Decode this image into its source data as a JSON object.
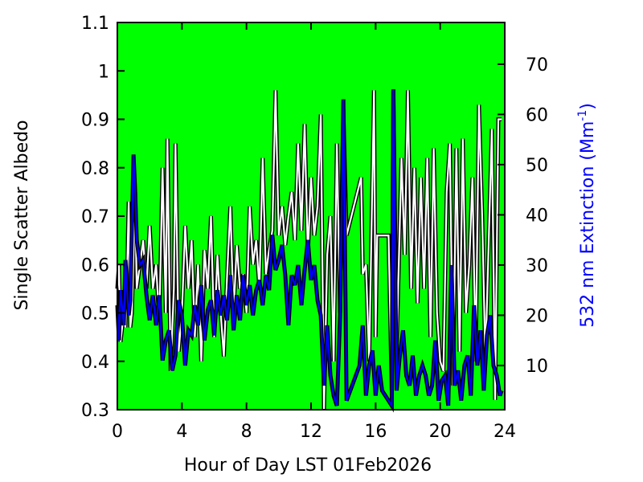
{
  "chart_data": {
    "type": "line",
    "title": "",
    "xlabel": "Hour of Day LST 01Feb2026",
    "ylabel": "Single Scatter Albedo",
    "y2label_main": "532 nm Extinction (Mm",
    "y2label_sup": "-1",
    "y2label_end": ")",
    "xlim": [
      0,
      24
    ],
    "ylim": [
      0.3,
      1.1
    ],
    "y2lim": [
      1.2,
      78.3
    ],
    "grid": false,
    "background_color": "#00ff00",
    "xticks": [
      "0",
      "4",
      "8",
      "12",
      "16",
      "20",
      "24"
    ],
    "xtick_values": [
      0,
      4,
      8,
      12,
      16,
      20,
      24
    ],
    "yticks": [
      "0.3",
      "0.4",
      "0.5",
      "0.6",
      "0.7",
      "0.8",
      "0.9",
      "1",
      "1.1"
    ],
    "ytick_values": [
      0.3,
      0.4,
      0.5,
      0.6,
      0.7,
      0.8,
      0.9,
      1.0,
      1.1
    ],
    "y2ticks": [
      "10",
      "20",
      "30",
      "40",
      "50",
      "60",
      "70"
    ],
    "y2tick_values": [
      10,
      20,
      30,
      40,
      50,
      60,
      70
    ],
    "series": [
      {
        "name": "Single Scatter Albedo",
        "axis": "left",
        "color": "#ffffff",
        "x": [
          0.0,
          0.1,
          0.2,
          0.4,
          0.5,
          0.6,
          0.7,
          0.8,
          0.9,
          1.1,
          1.2,
          1.4,
          1.6,
          1.8,
          2.0,
          2.2,
          2.4,
          2.6,
          2.8,
          3.0,
          3.1,
          3.3,
          3.5,
          3.6,
          3.8,
          4.0,
          4.2,
          4.4,
          4.6,
          4.8,
          5.0,
          5.2,
          5.4,
          5.6,
          5.8,
          6.0,
          6.2,
          6.4,
          6.6,
          6.8,
          7.0,
          7.2,
          7.4,
          7.6,
          7.8,
          8.0,
          8.2,
          8.4,
          8.6,
          8.8,
          9.0,
          9.2,
          9.4,
          9.6,
          9.8,
          10.0,
          10.2,
          10.4,
          10.6,
          10.8,
          11.0,
          11.2,
          11.4,
          11.6,
          11.8,
          12.0,
          12.2,
          12.4,
          12.6,
          12.8,
          13.0,
          13.2,
          13.4,
          13.6,
          13.8,
          14.0,
          14.2,
          15.1,
          15.2,
          15.4,
          15.6,
          15.9,
          16.0,
          16.1,
          16.8,
          17.0,
          17.1,
          17.3,
          17.6,
          17.8,
          18.0,
          18.2,
          18.4,
          18.6,
          18.8,
          19.0,
          19.2,
          19.4,
          19.6,
          19.8,
          20.0,
          20.2,
          20.4,
          20.6,
          20.8,
          21.0,
          21.2,
          21.4,
          21.6,
          21.8,
          22.0,
          22.2,
          22.4,
          22.6,
          22.8,
          23.2,
          23.4,
          23.6,
          23.8
        ],
        "values": [
          0.55,
          0.6,
          0.44,
          0.5,
          0.47,
          0.58,
          0.73,
          0.47,
          0.5,
          0.75,
          0.55,
          0.6,
          0.65,
          0.55,
          0.68,
          0.55,
          0.6,
          0.48,
          0.8,
          0.5,
          0.86,
          0.38,
          0.55,
          0.85,
          0.42,
          0.5,
          0.68,
          0.55,
          0.65,
          0.45,
          0.6,
          0.4,
          0.63,
          0.55,
          0.7,
          0.45,
          0.62,
          0.5,
          0.41,
          0.58,
          0.72,
          0.5,
          0.64,
          0.55,
          0.58,
          0.5,
          0.72,
          0.6,
          0.65,
          0.55,
          0.82,
          0.58,
          0.63,
          0.67,
          0.96,
          0.66,
          0.72,
          0.64,
          0.7,
          0.75,
          0.65,
          0.85,
          0.67,
          0.89,
          0.62,
          0.78,
          0.66,
          0.72,
          0.91,
          0.3,
          0.62,
          0.7,
          0.4,
          0.85,
          0.5,
          0.92,
          0.66,
          0.78,
          0.58,
          0.6,
          0.4,
          0.96,
          0.45,
          0.66,
          0.66,
          0.34,
          0.96,
          0.42,
          0.82,
          0.62,
          0.96,
          0.55,
          0.8,
          0.52,
          0.78,
          0.55,
          0.82,
          0.45,
          0.84,
          0.5,
          0.4,
          0.38,
          0.75,
          0.85,
          0.35,
          0.84,
          0.42,
          0.86,
          0.5,
          0.6,
          0.78,
          0.4,
          0.93,
          0.7,
          0.4,
          0.88,
          0.32,
          0.9,
          0.9
        ]
      },
      {
        "name": "532 nm Extinction",
        "axis": "right",
        "color": "#0000ff",
        "x": [
          0.0,
          0.1,
          0.2,
          0.4,
          0.5,
          0.6,
          0.7,
          0.8,
          1.0,
          1.1,
          1.2,
          1.4,
          1.6,
          1.8,
          2.0,
          2.2,
          2.4,
          2.6,
          2.8,
          3.0,
          3.2,
          3.4,
          3.6,
          3.8,
          4.0,
          4.2,
          4.4,
          4.6,
          4.8,
          5.0,
          5.2,
          5.4,
          5.6,
          5.8,
          6.0,
          6.2,
          6.4,
          6.6,
          6.8,
          7.0,
          7.2,
          7.4,
          7.6,
          7.8,
          8.0,
          8.2,
          8.4,
          8.6,
          8.8,
          9.0,
          9.2,
          9.4,
          9.6,
          9.8,
          10.0,
          10.2,
          10.4,
          10.6,
          10.8,
          11.0,
          11.2,
          11.4,
          11.6,
          11.8,
          12.0,
          12.2,
          12.4,
          12.6,
          12.8,
          13.0,
          13.2,
          13.4,
          13.6,
          13.8,
          14.0,
          14.2,
          15.0,
          15.2,
          15.4,
          15.6,
          15.8,
          16.0,
          16.2,
          16.4,
          16.8,
          17.0,
          17.1,
          17.3,
          17.5,
          17.7,
          17.9,
          18.1,
          18.3,
          18.5,
          18.7,
          18.9,
          19.1,
          19.3,
          19.5,
          19.7,
          19.9,
          20.1,
          20.3,
          20.5,
          20.7,
          20.9,
          21.1,
          21.3,
          21.5,
          21.7,
          21.9,
          22.1,
          22.3,
          22.5,
          22.7,
          22.9,
          23.1,
          23.3,
          23.5,
          23.7,
          23.8
        ],
        "values": [
          22,
          15,
          25,
          18,
          31,
          25,
          20,
          23,
          52,
          45,
          35,
          30,
          31,
          24,
          19,
          24,
          18,
          24,
          11,
          15,
          17,
          9,
          12,
          23,
          20,
          10,
          17,
          16,
          22,
          18,
          26,
          15,
          21,
          23,
          16,
          25,
          20,
          24,
          19,
          28,
          17,
          24,
          19,
          28,
          22,
          26,
          20,
          25,
          27,
          22,
          28,
          25,
          36,
          29,
          31,
          34,
          28,
          18,
          28,
          26,
          30,
          22,
          29,
          35,
          27,
          30,
          23,
          20,
          6,
          18,
          8,
          4,
          2,
          20,
          63,
          3,
          10,
          18,
          4,
          10,
          13,
          4,
          10,
          5,
          3,
          2,
          65,
          5,
          12,
          17,
          8,
          6,
          12,
          4,
          8,
          10,
          8,
          4,
          6,
          15,
          3,
          7,
          8,
          2,
          30,
          6,
          9,
          3,
          10,
          12,
          4,
          22,
          10,
          17,
          5,
          16,
          20,
          10,
          8,
          4,
          5
        ]
      }
    ]
  }
}
